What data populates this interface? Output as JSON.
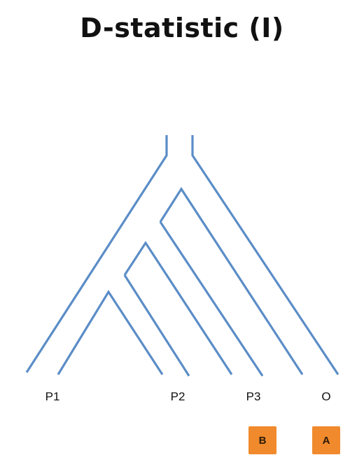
{
  "title": "D-statistic (I)",
  "taxa": [
    {
      "id": "p1",
      "label": "P1"
    },
    {
      "id": "p2",
      "label": "P2"
    },
    {
      "id": "p3",
      "label": "P3"
    },
    {
      "id": "o",
      "label": "O"
    }
  ],
  "alleles": [
    {
      "id": "p3",
      "label": "B"
    },
    {
      "id": "o",
      "label": "A"
    }
  ],
  "colors": {
    "branch": "#5b8dc7",
    "allele_box": "#f08a2c"
  }
}
